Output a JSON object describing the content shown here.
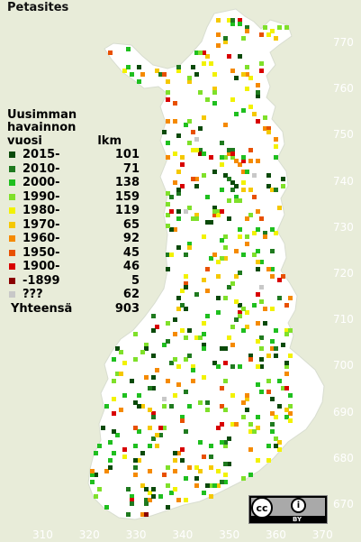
{
  "map": {
    "title": "Petasites",
    "background_color": "#e8ecd9",
    "land_color": "#ffffff"
  },
  "legend": {
    "heading_lines": [
      "Uusimman",
      "havainnon"
    ],
    "col_year_label": "vuosi",
    "col_count_label": "lkm",
    "items": [
      {
        "label": "2015-",
        "count": "101",
        "color": "#0a4a0a"
      },
      {
        "label": "2010-",
        "count": "71",
        "color": "#1f7a1f"
      },
      {
        "label": "2000-",
        "count": "138",
        "color": "#1fbf1f"
      },
      {
        "label": "1990-",
        "count": "159",
        "color": "#7fe02a"
      },
      {
        "label": "1980-",
        "count": "119",
        "color": "#f2f200"
      },
      {
        "label": "1970-",
        "count": "65",
        "color": "#f5c800"
      },
      {
        "label": "1960-",
        "count": "92",
        "color": "#f58a00"
      },
      {
        "label": "1950-",
        "count": "45",
        "color": "#e85000"
      },
      {
        "label": "1900-",
        "count": "46",
        "color": "#d80000"
      },
      {
        "label": "-1899",
        "count": "5",
        "color": "#8a0000"
      },
      {
        "label": "???",
        "count": "62",
        "color": "#c8c8c8"
      }
    ],
    "total_label": "Yhteensä",
    "total_count": "903"
  },
  "axes": {
    "y_ticks": [
      "770",
      "760",
      "750",
      "740",
      "730",
      "720",
      "710",
      "700",
      "690",
      "680",
      "670"
    ],
    "x_ticks": [
      "310",
      "320",
      "330",
      "340",
      "350",
      "360",
      "370"
    ]
  },
  "license": {
    "cc_text": "cc",
    "by_text": "BY"
  }
}
